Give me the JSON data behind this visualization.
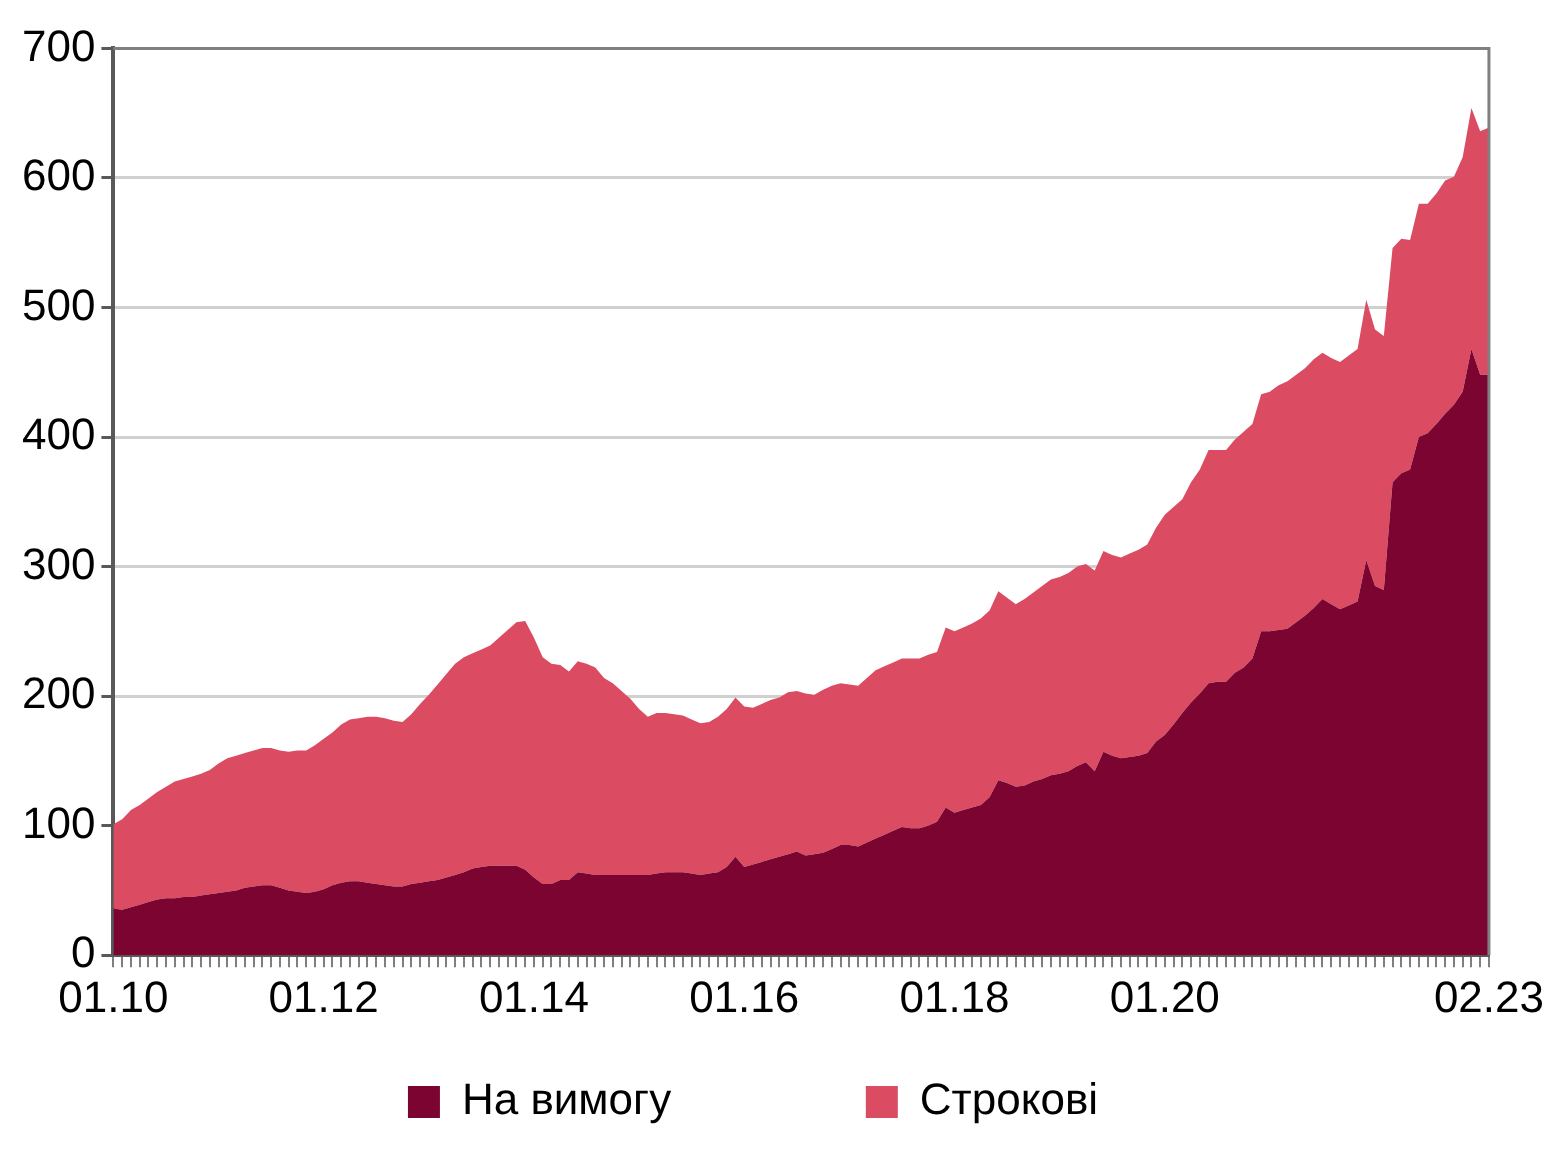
{
  "chart_data": {
    "type": "area",
    "stacked": true,
    "categories": [
      "01.10",
      null,
      null,
      null,
      null,
      null,
      null,
      null,
      null,
      null,
      null,
      null,
      null,
      null,
      null,
      null,
      null,
      null,
      null,
      null,
      null,
      null,
      null,
      null,
      "01.12",
      null,
      null,
      null,
      null,
      null,
      null,
      null,
      null,
      null,
      null,
      null,
      null,
      null,
      null,
      null,
      null,
      null,
      null,
      null,
      null,
      null,
      null,
      null,
      "01.14",
      null,
      null,
      null,
      null,
      null,
      null,
      null,
      null,
      null,
      null,
      null,
      null,
      null,
      null,
      null,
      null,
      null,
      null,
      null,
      null,
      null,
      null,
      null,
      "01.16",
      null,
      null,
      null,
      null,
      null,
      null,
      null,
      null,
      null,
      null,
      null,
      null,
      null,
      null,
      null,
      null,
      null,
      null,
      null,
      null,
      null,
      null,
      null,
      "01.18",
      null,
      null,
      null,
      null,
      null,
      null,
      null,
      null,
      null,
      null,
      null,
      null,
      null,
      null,
      null,
      null,
      null,
      null,
      null,
      null,
      null,
      null,
      null,
      "01.20",
      null,
      null,
      null,
      null,
      null,
      null,
      null,
      null,
      null,
      null,
      null,
      null,
      null,
      null,
      null,
      null,
      null,
      null,
      null,
      null,
      null,
      null,
      null,
      null,
      null,
      null,
      null,
      null,
      null,
      null,
      null,
      null,
      null,
      null,
      null,
      null,
      "02.23"
    ],
    "series": [
      {
        "name": "На вимогу",
        "color": "#7b0530",
        "values": [
          36,
          35,
          37,
          39,
          41,
          43,
          44,
          44,
          45,
          45,
          46,
          47,
          48,
          49,
          50,
          52,
          53,
          54,
          54,
          52,
          50,
          49,
          48,
          49,
          51,
          54,
          56,
          57,
          57,
          56,
          55,
          54,
          53,
          53,
          55,
          56,
          57,
          58,
          60,
          62,
          64,
          67,
          68,
          69,
          69,
          69,
          69,
          66,
          60,
          55,
          55,
          58,
          58,
          64,
          63,
          62,
          62,
          62,
          62,
          62,
          62,
          62,
          63,
          64,
          64,
          64,
          63,
          62,
          63,
          64,
          68,
          76,
          68,
          70,
          72,
          74,
          76,
          78,
          80,
          77,
          78,
          79,
          82,
          85,
          85,
          84,
          87,
          90,
          93,
          96,
          99,
          98,
          98,
          100,
          103,
          114,
          110,
          112,
          114,
          116,
          122,
          135,
          133,
          130,
          131,
          134,
          136,
          139,
          140,
          142,
          146,
          149,
          142,
          157,
          154,
          152,
          153,
          154,
          156,
          165,
          170,
          178,
          187,
          195,
          202,
          210,
          211,
          211,
          218,
          222,
          229,
          250,
          250,
          251,
          252,
          257,
          262,
          268,
          275,
          271,
          267,
          270,
          273,
          305,
          285,
          282,
          365,
          372,
          375,
          400,
          403,
          410,
          418,
          425,
          435,
          468,
          448,
          448
        ]
      },
      {
        "name": "Строкові",
        "color": "#db4c63",
        "values": [
          65,
          70,
          75,
          77,
          80,
          83,
          86,
          90,
          91,
          93,
          94,
          96,
          100,
          103,
          104,
          104,
          105,
          106,
          106,
          106,
          107,
          109,
          110,
          113,
          116,
          118,
          122,
          125,
          126,
          128,
          129,
          129,
          128,
          127,
          131,
          138,
          144,
          151,
          157,
          163,
          166,
          166,
          168,
          170,
          176,
          182,
          188,
          192,
          185,
          175,
          170,
          166,
          161,
          163,
          162,
          160,
          152,
          148,
          142,
          136,
          128,
          122,
          124,
          123,
          122,
          121,
          119,
          117,
          117,
          120,
          122,
          123,
          124,
          121,
          122,
          123,
          123,
          125,
          124,
          125,
          123,
          126,
          126,
          125,
          124,
          124,
          127,
          130,
          130,
          130,
          130,
          131,
          131,
          132,
          131,
          139,
          140,
          141,
          142,
          144,
          144,
          146,
          143,
          141,
          144,
          146,
          149,
          151,
          152,
          153,
          154,
          153,
          155,
          155,
          155,
          155,
          157,
          159,
          161,
          165,
          170,
          168,
          165,
          170,
          173,
          180,
          179,
          179,
          180,
          182,
          181,
          183,
          185,
          189,
          191,
          191,
          191,
          192,
          190,
          190,
          191,
          193,
          195,
          201,
          198,
          196,
          181,
          181,
          177,
          180,
          177,
          178,
          180,
          176,
          181,
          186,
          188,
          191
        ]
      }
    ],
    "ylim": [
      0,
      700
    ],
    "yticks": [
      0,
      100,
      200,
      300,
      400,
      500,
      600,
      700
    ],
    "grid": "y",
    "legend": "bottom"
  }
}
